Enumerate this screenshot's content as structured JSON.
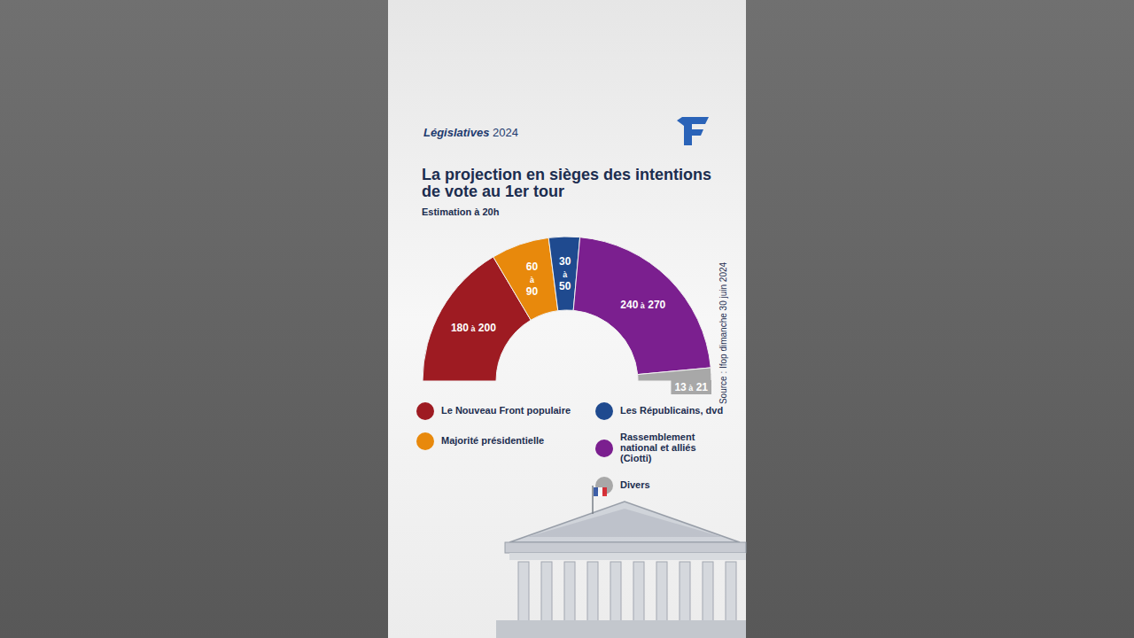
{
  "chart_data": {
    "type": "donut",
    "header": "Législatives 2024",
    "title": "La projection en sièges des intentions de vote au 1er tour",
    "subtitle": "Estimation à 20h",
    "source": "Source : Ifop dimanche 30 juin 2024",
    "categories": [
      "Le Nouveau Front populaire",
      "Majorité présidentielle",
      "Les Républicains, dvd",
      "Rassemblement national et alliés (Ciotti)",
      "Divers"
    ],
    "low": [
      180,
      60,
      30,
      240,
      13
    ],
    "high": [
      200,
      90,
      50,
      270,
      21
    ],
    "value_labels": [
      "180 à 200",
      "60 à 90",
      "30 à 50",
      "240 à 270",
      "13 à 21"
    ],
    "colors": [
      "#9e1b22",
      "#e8890c",
      "#1f4a8f",
      "#7b1f8f",
      "#a8a8a8"
    ],
    "data_labels": true,
    "legend": "bottom"
  }
}
